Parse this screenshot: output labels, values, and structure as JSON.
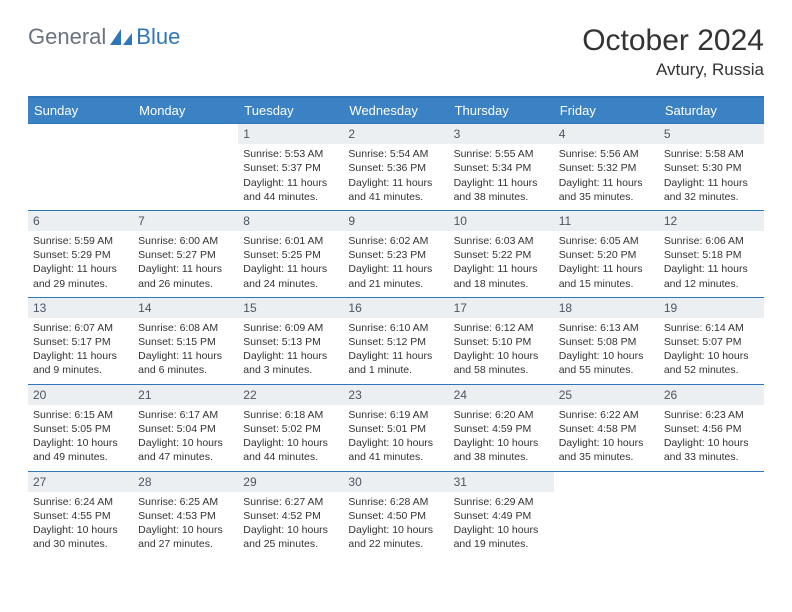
{
  "logo": {
    "textA": "General",
    "textB": "Blue"
  },
  "title": "October 2024",
  "location": "Avtury, Russia",
  "colors": {
    "headerBar": "#3b82c4",
    "borderBlue": "#2f76b8",
    "dayNumBg": "#eceff1",
    "textDark": "#333333",
    "textGray": "#6b7280",
    "logoBlue": "#2f76b8"
  },
  "dayHeaders": [
    "Sunday",
    "Monday",
    "Tuesday",
    "Wednesday",
    "Thursday",
    "Friday",
    "Saturday"
  ],
  "weeks": [
    [
      null,
      null,
      {
        "n": "1",
        "sr": "Sunrise: 5:53 AM",
        "ss": "Sunset: 5:37 PM",
        "d1": "Daylight: 11 hours",
        "d2": "and 44 minutes."
      },
      {
        "n": "2",
        "sr": "Sunrise: 5:54 AM",
        "ss": "Sunset: 5:36 PM",
        "d1": "Daylight: 11 hours",
        "d2": "and 41 minutes."
      },
      {
        "n": "3",
        "sr": "Sunrise: 5:55 AM",
        "ss": "Sunset: 5:34 PM",
        "d1": "Daylight: 11 hours",
        "d2": "and 38 minutes."
      },
      {
        "n": "4",
        "sr": "Sunrise: 5:56 AM",
        "ss": "Sunset: 5:32 PM",
        "d1": "Daylight: 11 hours",
        "d2": "and 35 minutes."
      },
      {
        "n": "5",
        "sr": "Sunrise: 5:58 AM",
        "ss": "Sunset: 5:30 PM",
        "d1": "Daylight: 11 hours",
        "d2": "and 32 minutes."
      }
    ],
    [
      {
        "n": "6",
        "sr": "Sunrise: 5:59 AM",
        "ss": "Sunset: 5:29 PM",
        "d1": "Daylight: 11 hours",
        "d2": "and 29 minutes."
      },
      {
        "n": "7",
        "sr": "Sunrise: 6:00 AM",
        "ss": "Sunset: 5:27 PM",
        "d1": "Daylight: 11 hours",
        "d2": "and 26 minutes."
      },
      {
        "n": "8",
        "sr": "Sunrise: 6:01 AM",
        "ss": "Sunset: 5:25 PM",
        "d1": "Daylight: 11 hours",
        "d2": "and 24 minutes."
      },
      {
        "n": "9",
        "sr": "Sunrise: 6:02 AM",
        "ss": "Sunset: 5:23 PM",
        "d1": "Daylight: 11 hours",
        "d2": "and 21 minutes."
      },
      {
        "n": "10",
        "sr": "Sunrise: 6:03 AM",
        "ss": "Sunset: 5:22 PM",
        "d1": "Daylight: 11 hours",
        "d2": "and 18 minutes."
      },
      {
        "n": "11",
        "sr": "Sunrise: 6:05 AM",
        "ss": "Sunset: 5:20 PM",
        "d1": "Daylight: 11 hours",
        "d2": "and 15 minutes."
      },
      {
        "n": "12",
        "sr": "Sunrise: 6:06 AM",
        "ss": "Sunset: 5:18 PM",
        "d1": "Daylight: 11 hours",
        "d2": "and 12 minutes."
      }
    ],
    [
      {
        "n": "13",
        "sr": "Sunrise: 6:07 AM",
        "ss": "Sunset: 5:17 PM",
        "d1": "Daylight: 11 hours",
        "d2": "and 9 minutes."
      },
      {
        "n": "14",
        "sr": "Sunrise: 6:08 AM",
        "ss": "Sunset: 5:15 PM",
        "d1": "Daylight: 11 hours",
        "d2": "and 6 minutes."
      },
      {
        "n": "15",
        "sr": "Sunrise: 6:09 AM",
        "ss": "Sunset: 5:13 PM",
        "d1": "Daylight: 11 hours",
        "d2": "and 3 minutes."
      },
      {
        "n": "16",
        "sr": "Sunrise: 6:10 AM",
        "ss": "Sunset: 5:12 PM",
        "d1": "Daylight: 11 hours",
        "d2": "and 1 minute."
      },
      {
        "n": "17",
        "sr": "Sunrise: 6:12 AM",
        "ss": "Sunset: 5:10 PM",
        "d1": "Daylight: 10 hours",
        "d2": "and 58 minutes."
      },
      {
        "n": "18",
        "sr": "Sunrise: 6:13 AM",
        "ss": "Sunset: 5:08 PM",
        "d1": "Daylight: 10 hours",
        "d2": "and 55 minutes."
      },
      {
        "n": "19",
        "sr": "Sunrise: 6:14 AM",
        "ss": "Sunset: 5:07 PM",
        "d1": "Daylight: 10 hours",
        "d2": "and 52 minutes."
      }
    ],
    [
      {
        "n": "20",
        "sr": "Sunrise: 6:15 AM",
        "ss": "Sunset: 5:05 PM",
        "d1": "Daylight: 10 hours",
        "d2": "and 49 minutes."
      },
      {
        "n": "21",
        "sr": "Sunrise: 6:17 AM",
        "ss": "Sunset: 5:04 PM",
        "d1": "Daylight: 10 hours",
        "d2": "and 47 minutes."
      },
      {
        "n": "22",
        "sr": "Sunrise: 6:18 AM",
        "ss": "Sunset: 5:02 PM",
        "d1": "Daylight: 10 hours",
        "d2": "and 44 minutes."
      },
      {
        "n": "23",
        "sr": "Sunrise: 6:19 AM",
        "ss": "Sunset: 5:01 PM",
        "d1": "Daylight: 10 hours",
        "d2": "and 41 minutes."
      },
      {
        "n": "24",
        "sr": "Sunrise: 6:20 AM",
        "ss": "Sunset: 4:59 PM",
        "d1": "Daylight: 10 hours",
        "d2": "and 38 minutes."
      },
      {
        "n": "25",
        "sr": "Sunrise: 6:22 AM",
        "ss": "Sunset: 4:58 PM",
        "d1": "Daylight: 10 hours",
        "d2": "and 35 minutes."
      },
      {
        "n": "26",
        "sr": "Sunrise: 6:23 AM",
        "ss": "Sunset: 4:56 PM",
        "d1": "Daylight: 10 hours",
        "d2": "and 33 minutes."
      }
    ],
    [
      {
        "n": "27",
        "sr": "Sunrise: 6:24 AM",
        "ss": "Sunset: 4:55 PM",
        "d1": "Daylight: 10 hours",
        "d2": "and 30 minutes."
      },
      {
        "n": "28",
        "sr": "Sunrise: 6:25 AM",
        "ss": "Sunset: 4:53 PM",
        "d1": "Daylight: 10 hours",
        "d2": "and 27 minutes."
      },
      {
        "n": "29",
        "sr": "Sunrise: 6:27 AM",
        "ss": "Sunset: 4:52 PM",
        "d1": "Daylight: 10 hours",
        "d2": "and 25 minutes."
      },
      {
        "n": "30",
        "sr": "Sunrise: 6:28 AM",
        "ss": "Sunset: 4:50 PM",
        "d1": "Daylight: 10 hours",
        "d2": "and 22 minutes."
      },
      {
        "n": "31",
        "sr": "Sunrise: 6:29 AM",
        "ss": "Sunset: 4:49 PM",
        "d1": "Daylight: 10 hours",
        "d2": "and 19 minutes."
      },
      null,
      null
    ]
  ]
}
